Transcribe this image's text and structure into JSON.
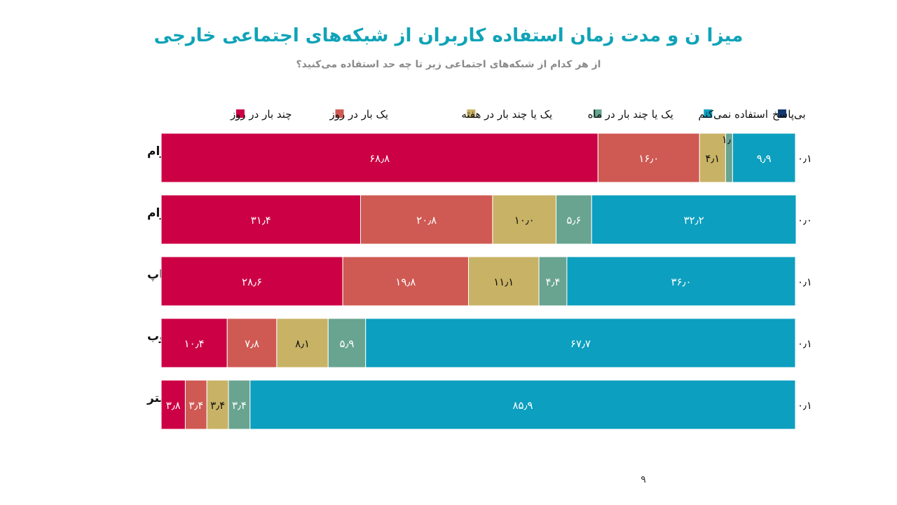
{
  "slide": {
    "page_number": "۹"
  },
  "chart_data": {
    "type": "bar",
    "orientation": "horizontal-stacked",
    "title": "میزا ن و مدت زمان استفاده کاربران از شبکه‌های اجتماعی خارجی",
    "subtitle": "از هر کدام از شبکه‌های اجتماعی زیر تا چه حد استفاده می‌کنید؟",
    "legend_position": "top",
    "xlim": [
      0,
      100
    ],
    "categories": [
      "اینستاگرام",
      "تلگرام",
      "واتساپ",
      "یوتیوب",
      "توئیتر"
    ],
    "series": [
      {
        "name": "چند بار در روز",
        "color": "#cc0044",
        "values": [
          68.8,
          31.4,
          28.6,
          10.4,
          3.8
        ],
        "labels": [
          "۶۸٫۸",
          "۳۱٫۴",
          "۲۸٫۶",
          "۱۰٫۴",
          "۳٫۸"
        ]
      },
      {
        "name": "یک بار در روز",
        "color": "#cf5a53",
        "values": [
          16.0,
          20.8,
          19.8,
          7.8,
          3.4
        ],
        "labels": [
          "۱۶٫۰",
          "۲۰٫۸",
          "۱۹٫۸",
          "۷٫۸",
          "۳٫۴"
        ]
      },
      {
        "name": "یک یا چند بار در هفته",
        "color": "#c8b265",
        "values": [
          4.1,
          10.0,
          11.1,
          8.1,
          3.4
        ],
        "labels": [
          "۴٫۱",
          "۱۰٫۰",
          "۱۱٫۱",
          "۸٫۱",
          "۳٫۴"
        ]
      },
      {
        "name": "یک یا چند بار در ماه",
        "color": "#68a490",
        "values": [
          1.1,
          5.6,
          4.4,
          5.9,
          3.4
        ],
        "labels": [
          "۱٫۱",
          "۵٫۶",
          "۴٫۴",
          "۵٫۹",
          "۳٫۴"
        ]
      },
      {
        "name": "استفاده نمی‌کنم",
        "color": "#0c9fbf",
        "values": [
          9.9,
          32.2,
          36.0,
          67.7,
          85.9
        ],
        "labels": [
          "۹٫۹",
          "۳۲٫۲",
          "۳۶٫۰",
          "۶۷٫۷",
          "۸۵٫۹"
        ]
      },
      {
        "name": "بی‌پاسخ",
        "color": "#13386e",
        "values": [
          0.1,
          0.0,
          0.1,
          0.1,
          0.1
        ],
        "labels": [
          "۰٫۱",
          "۰٫۰",
          "۰٫۱",
          "۰٫۱",
          "۰٫۱"
        ]
      }
    ]
  }
}
